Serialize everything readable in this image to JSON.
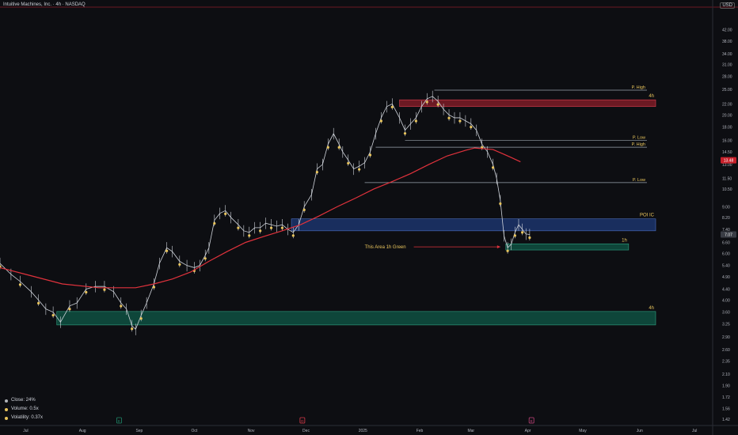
{
  "header": {
    "title": "Intuitive Machines, Inc. · 4h · NASDAQ",
    "currency": "USD"
  },
  "legend": [
    {
      "label": "Close: 24%",
      "dot": "gray"
    },
    {
      "label": "Volume: 0.5x",
      "dot": "gold"
    },
    {
      "label": "Volatility: 0.37x",
      "dot": "gold"
    }
  ],
  "colors": {
    "bg": "#0d0e12",
    "ma": "#e0323c",
    "zone_red": "#8c1d2a",
    "zone_blue": "#1e3a78",
    "zone_green": "#0f5a48",
    "level": "#9aa3ad",
    "dot": "#e8c45c",
    "price_tag": "#c8202a"
  },
  "chart_data": {
    "type": "line",
    "title": "Intuitive Machines, Inc. · 4h · NASDAQ",
    "y_scale": "log",
    "ylim": [
      1.4,
      50
    ],
    "y_ticks": [
      "42.00",
      "38.00",
      "34.00",
      "31.00",
      "28.00",
      "25.00",
      "22.00",
      "20.00",
      "18.00",
      "16.00",
      "14.50",
      "13.00",
      "11.50",
      "10.50",
      "9.00",
      "8.20",
      "7.40",
      "6.60",
      "6.00",
      "5.40",
      "4.90",
      "4.40",
      "4.00",
      "3.60",
      "3.25",
      "2.90",
      "2.60",
      "2.35",
      "2.10",
      "1.90",
      "1.72",
      "1.56",
      "1.42"
    ],
    "x_ticks": [
      "Jul",
      "Aug",
      "Sep",
      "Oct",
      "Nov",
      "Dec",
      "2025",
      "Feb",
      "Mar",
      "Apr",
      "May",
      "Jun",
      "Jul"
    ],
    "x_tick_times": [
      0,
      31,
      62,
      92,
      123,
      153,
      184,
      215,
      243,
      274,
      304,
      335,
      365
    ],
    "xlim": [
      -14,
      374
    ],
    "last_price": "7.07",
    "last_price_value": 7.07,
    "ma_price": "13.48",
    "ma_price_value": 13.48,
    "series": [
      {
        "name": "Price",
        "points": [
          [
            -14,
            5.5
          ],
          [
            -8,
            5.0
          ],
          [
            -3,
            4.7
          ],
          [
            3,
            4.3
          ],
          [
            7,
            4.0
          ],
          [
            11,
            3.7
          ],
          [
            15,
            3.6
          ],
          [
            19,
            3.3
          ],
          [
            24,
            3.8
          ],
          [
            28,
            3.9
          ],
          [
            33,
            4.4
          ],
          [
            38,
            4.5
          ],
          [
            43,
            4.5
          ],
          [
            48,
            4.3
          ],
          [
            52,
            3.9
          ],
          [
            55,
            3.7
          ],
          [
            58,
            3.2
          ],
          [
            60,
            3.1
          ],
          [
            63,
            3.5
          ],
          [
            66,
            3.9
          ],
          [
            70,
            4.6
          ],
          [
            73,
            5.5
          ],
          [
            77,
            6.3
          ],
          [
            80,
            6.1
          ],
          [
            84,
            5.6
          ],
          [
            88,
            5.4
          ],
          [
            92,
            5.3
          ],
          [
            95,
            5.4
          ],
          [
            98,
            5.9
          ],
          [
            100,
            6.3
          ],
          [
            103,
            8.0
          ],
          [
            106,
            8.5
          ],
          [
            109,
            8.7
          ],
          [
            112,
            8.2
          ],
          [
            116,
            7.7
          ],
          [
            119,
            7.3
          ],
          [
            122,
            7.2
          ],
          [
            125,
            7.5
          ],
          [
            128,
            7.5
          ],
          [
            131,
            7.8
          ],
          [
            134,
            7.7
          ],
          [
            137,
            7.6
          ],
          [
            140,
            7.7
          ],
          [
            143,
            7.4
          ],
          [
            146,
            7.2
          ],
          [
            149,
            7.7
          ],
          [
            152,
            9.0
          ],
          [
            156,
            10.0
          ],
          [
            159,
            12.5
          ],
          [
            162,
            13.0
          ],
          [
            165,
            15.5
          ],
          [
            168,
            17.0
          ],
          [
            171,
            15.5
          ],
          [
            173,
            14.5
          ],
          [
            176,
            13.5
          ],
          [
            179,
            12.5
          ],
          [
            182,
            12.8
          ],
          [
            185,
            13.2
          ],
          [
            188,
            14.5
          ],
          [
            191,
            17.0
          ],
          [
            194,
            19.5
          ],
          [
            197,
            21.5
          ],
          [
            200,
            22.0
          ],
          [
            204,
            19.5
          ],
          [
            207,
            17.5
          ],
          [
            210,
            18.5
          ],
          [
            213,
            19.5
          ],
          [
            216,
            21.5
          ],
          [
            219,
            23.0
          ],
          [
            222,
            23.5
          ],
          [
            225,
            22.5
          ],
          [
            228,
            21.0
          ],
          [
            231,
            20.0
          ],
          [
            234,
            19.5
          ],
          [
            237,
            19.5
          ],
          [
            240,
            19.0
          ],
          [
            243,
            18.5
          ],
          [
            246,
            17.5
          ],
          [
            249,
            15.5
          ],
          [
            252,
            14.5
          ],
          [
            255,
            13.0
          ],
          [
            257,
            11.5
          ],
          [
            259,
            9.5
          ],
          [
            261,
            7.0
          ],
          [
            263,
            6.3
          ],
          [
            265,
            6.5
          ],
          [
            267,
            7.2
          ],
          [
            269,
            7.7
          ],
          [
            271,
            7.4
          ],
          [
            273,
            7.1
          ],
          [
            275,
            7.07
          ]
        ]
      },
      {
        "name": "MA",
        "points": [
          [
            -14,
            5.3
          ],
          [
            0,
            5.0
          ],
          [
            20,
            4.6
          ],
          [
            40,
            4.45
          ],
          [
            60,
            4.45
          ],
          [
            70,
            4.6
          ],
          [
            80,
            4.8
          ],
          [
            90,
            5.1
          ],
          [
            100,
            5.6
          ],
          [
            110,
            6.1
          ],
          [
            120,
            6.6
          ],
          [
            130,
            6.95
          ],
          [
            140,
            7.3
          ],
          [
            150,
            7.7
          ],
          [
            160,
            8.3
          ],
          [
            170,
            9.0
          ],
          [
            180,
            9.7
          ],
          [
            190,
            10.5
          ],
          [
            200,
            11.2
          ],
          [
            210,
            12.0
          ],
          [
            220,
            13.0
          ],
          [
            230,
            14.0
          ],
          [
            240,
            14.7
          ],
          [
            245,
            15.0
          ],
          [
            250,
            14.9
          ],
          [
            255,
            14.8
          ],
          [
            260,
            14.3
          ],
          [
            265,
            13.8
          ],
          [
            270,
            13.3
          ]
        ]
      }
    ],
    "levels": [
      {
        "label": "P. High",
        "price": 24.8,
        "x0": 223,
        "x1": 339
      },
      {
        "label": "P. Low",
        "price": 16.0,
        "x0": 207,
        "x1": 339
      },
      {
        "label": "P. High",
        "price": 15.1,
        "x0": 191,
        "x1": 339
      },
      {
        "label": "P. Low",
        "price": 11.1,
        "x0": 185,
        "x1": 339
      }
    ],
    "zones": [
      {
        "label": "4h",
        "color": "red",
        "top": 22.8,
        "bottom": 21.5,
        "x0": 204
      },
      {
        "label": "POI IC",
        "color": "blue",
        "top": 8.1,
        "bottom": 7.3,
        "x0": 145
      },
      {
        "label": "1h",
        "color": "green",
        "top": 6.52,
        "bottom": 6.18,
        "x0": 262,
        "x1": 329
      },
      {
        "label": "4h",
        "color": "green",
        "top": 3.62,
        "bottom": 3.22,
        "x0": 17
      }
    ],
    "annotation": {
      "text": "This Area 1h Green",
      "price": 6.35,
      "text_x": 185,
      "arrow_x1": 259
    },
    "event_markers": [
      {
        "label": "E",
        "color": "#1f8a6a",
        "time": 51
      },
      {
        "label": "D",
        "color": "#d83b4a",
        "time": 151
      },
      {
        "label": "E",
        "color": "#c4447c",
        "time": 276
      }
    ]
  }
}
